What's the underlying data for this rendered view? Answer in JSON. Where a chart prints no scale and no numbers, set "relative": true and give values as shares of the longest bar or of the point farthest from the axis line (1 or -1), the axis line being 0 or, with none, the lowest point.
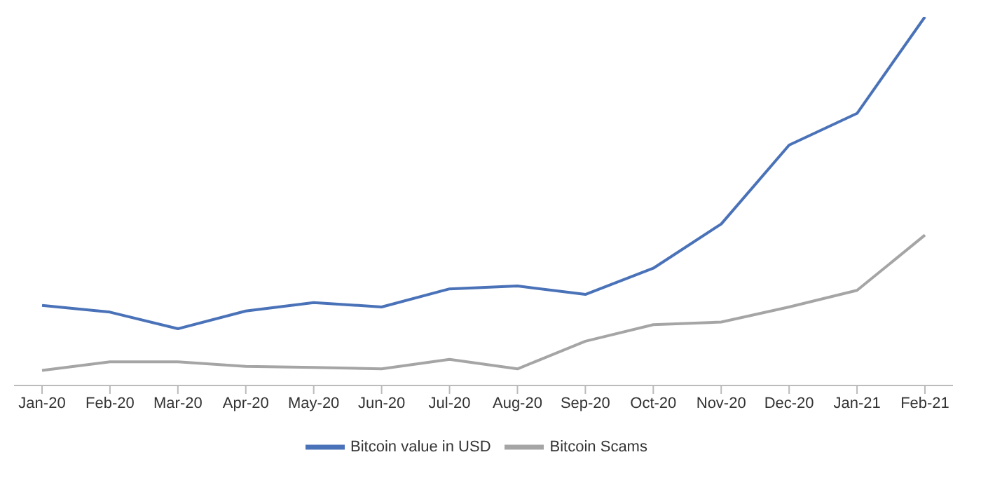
{
  "chart_data": {
    "type": "line",
    "relative": true,
    "legend": "bottom",
    "categories": [
      "Jan-20",
      "Feb-20",
      "Mar-20",
      "Apr-20",
      "May-20",
      "Jun-20",
      "Jul-20",
      "Aug-20",
      "Sep-20",
      "Oct-20",
      "Nov-20",
      "Dec-20",
      "Jan-21",
      "Feb-21"
    ],
    "series": [
      {
        "name": "Bitcoin value in USD",
        "color": "#4a72b8",
        "values": [
          0.217,
          0.199,
          0.154,
          0.202,
          0.225,
          0.213,
          0.262,
          0.27,
          0.247,
          0.318,
          0.438,
          0.652,
          0.738,
          1
        ]
      },
      {
        "name": "Bitcoin Scams",
        "color": "#a5a5a5",
        "values": [
          0.041,
          0.064,
          0.064,
          0.052,
          0.049,
          0.045,
          0.071,
          0.045,
          0.12,
          0.165,
          0.172,
          0.213,
          0.258,
          0.408
        ]
      }
    ]
  }
}
